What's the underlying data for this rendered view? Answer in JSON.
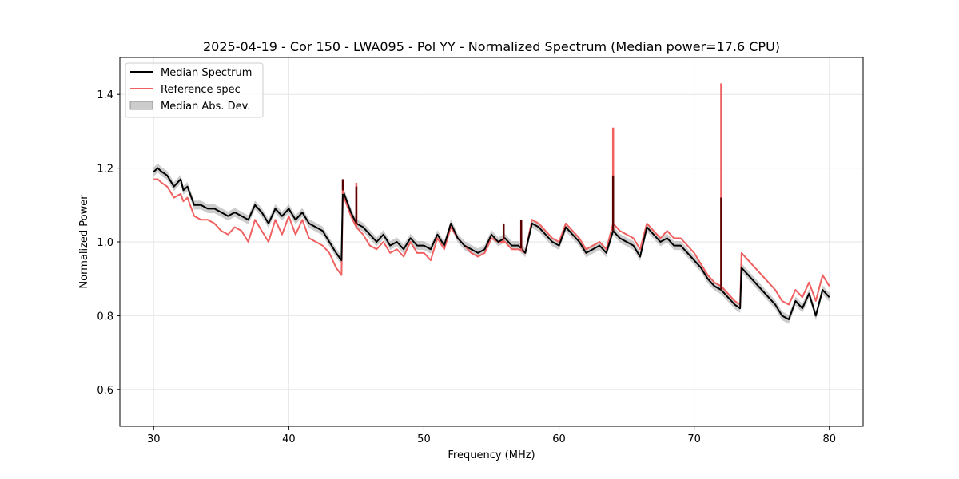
{
  "chart_data": {
    "type": "line",
    "title": "2025-04-19 - Cor 150 - LWA095 - Pol YY - Normalized Spectrum (Median power=17.6 CPU)",
    "xlabel": "Frequency (MHz)",
    "ylabel": "Normalized Power",
    "xlim": [
      27.5,
      82.5
    ],
    "ylim": [
      0.5,
      1.5
    ],
    "xticks": [
      30,
      40,
      50,
      60,
      70,
      80
    ],
    "yticks": [
      0.6,
      0.8,
      1.0,
      1.2,
      1.4
    ],
    "grid": true,
    "legend_position": "top-left",
    "legend": [
      "Median Spectrum",
      "Reference spec",
      "Median Abs. Dev."
    ],
    "colors": {
      "median": "#000000",
      "reference": "#f06060",
      "mad": "#999999"
    },
    "series": [
      {
        "name": "Median Spectrum",
        "x": [
          30.0,
          30.3,
          30.6,
          31.0,
          31.5,
          32.0,
          32.2,
          32.5,
          32.8,
          33.0,
          33.5,
          34.0,
          34.5,
          35.0,
          35.5,
          36.0,
          36.5,
          37.0,
          37.5,
          38.0,
          38.5,
          39.0,
          39.5,
          40.0,
          40.5,
          41.0,
          41.5,
          42.0,
          42.5,
          43.0,
          43.5,
          43.9,
          44.0,
          44.3,
          44.6,
          45.0,
          45.5,
          46.0,
          46.5,
          47.0,
          47.5,
          48.0,
          48.5,
          49.0,
          49.5,
          50.0,
          50.5,
          51.0,
          51.5,
          52.0,
          52.5,
          53.0,
          53.5,
          54.0,
          54.5,
          55.0,
          55.5,
          56.0,
          56.5,
          57.0,
          57.5,
          58.0,
          58.5,
          59.0,
          59.5,
          60.0,
          60.5,
          61.0,
          61.5,
          62.0,
          62.5,
          63.0,
          63.5,
          64.0,
          64.5,
          65.0,
          65.5,
          66.0,
          66.5,
          67.0,
          67.5,
          68.0,
          68.5,
          69.0,
          69.5,
          70.0,
          70.5,
          71.0,
          71.5,
          72.0,
          72.5,
          73.0,
          73.4,
          73.5,
          74.0,
          74.5,
          75.0,
          75.5,
          76.0,
          76.5,
          77.0,
          77.5,
          78.0,
          78.5,
          79.0,
          79.5,
          80.0
        ],
        "values": [
          1.19,
          1.2,
          1.19,
          1.18,
          1.15,
          1.17,
          1.14,
          1.15,
          1.12,
          1.1,
          1.1,
          1.09,
          1.09,
          1.08,
          1.07,
          1.08,
          1.07,
          1.06,
          1.1,
          1.08,
          1.05,
          1.09,
          1.07,
          1.09,
          1.06,
          1.08,
          1.05,
          1.04,
          1.03,
          1.0,
          0.97,
          0.95,
          1.14,
          1.11,
          1.08,
          1.05,
          1.04,
          1.02,
          1.0,
          1.02,
          0.99,
          1.0,
          0.98,
          1.01,
          0.99,
          0.99,
          0.98,
          1.02,
          0.99,
          1.05,
          1.01,
          0.99,
          0.98,
          0.97,
          0.98,
          1.02,
          1.0,
          1.01,
          0.99,
          0.99,
          0.97,
          1.05,
          1.04,
          1.02,
          1.0,
          0.99,
          1.04,
          1.02,
          1.0,
          0.97,
          0.98,
          0.99,
          0.97,
          1.03,
          1.01,
          1.0,
          0.99,
          0.96,
          1.04,
          1.02,
          1.0,
          1.01,
          0.99,
          0.99,
          0.97,
          0.95,
          0.93,
          0.9,
          0.88,
          0.87,
          0.85,
          0.83,
          0.82,
          0.93,
          0.91,
          0.89,
          0.87,
          0.85,
          0.83,
          0.8,
          0.79,
          0.84,
          0.82,
          0.86,
          0.8,
          0.87,
          0.85
        ]
      },
      {
        "name": "Reference spec",
        "x": [
          30.0,
          30.3,
          30.6,
          31.0,
          31.5,
          32.0,
          32.2,
          32.5,
          32.8,
          33.0,
          33.5,
          34.0,
          34.5,
          35.0,
          35.5,
          36.0,
          36.5,
          37.0,
          37.5,
          38.0,
          38.5,
          39.0,
          39.5,
          40.0,
          40.5,
          41.0,
          41.5,
          42.0,
          42.5,
          43.0,
          43.5,
          43.9,
          44.0,
          44.3,
          44.6,
          45.0,
          45.5,
          46.0,
          46.5,
          47.0,
          47.5,
          48.0,
          48.5,
          49.0,
          49.5,
          50.0,
          50.5,
          51.0,
          51.5,
          52.0,
          52.5,
          53.0,
          53.5,
          54.0,
          54.5,
          55.0,
          55.5,
          56.0,
          56.5,
          57.0,
          57.5,
          58.0,
          58.5,
          59.0,
          59.5,
          60.0,
          60.5,
          61.0,
          61.5,
          62.0,
          62.5,
          63.0,
          63.5,
          64.0,
          64.5,
          65.0,
          65.5,
          66.0,
          66.5,
          67.0,
          67.5,
          68.0,
          68.5,
          69.0,
          69.5,
          70.0,
          70.5,
          71.0,
          71.5,
          72.0,
          72.5,
          73.0,
          73.4,
          73.5,
          74.0,
          74.5,
          75.0,
          75.5,
          76.0,
          76.5,
          77.0,
          77.5,
          78.0,
          78.5,
          79.0,
          79.5,
          80.0
        ],
        "values": [
          1.17,
          1.17,
          1.16,
          1.15,
          1.12,
          1.13,
          1.11,
          1.12,
          1.09,
          1.07,
          1.06,
          1.06,
          1.05,
          1.03,
          1.02,
          1.04,
          1.03,
          1.0,
          1.06,
          1.03,
          1.0,
          1.06,
          1.02,
          1.07,
          1.02,
          1.06,
          1.01,
          1.0,
          0.99,
          0.97,
          0.93,
          0.91,
          1.13,
          1.1,
          1.07,
          1.04,
          1.02,
          0.99,
          0.98,
          1.0,
          0.97,
          0.98,
          0.96,
          1.0,
          0.97,
          0.97,
          0.95,
          1.01,
          0.98,
          1.04,
          1.01,
          0.99,
          0.97,
          0.96,
          0.97,
          1.01,
          1.0,
          1.0,
          0.98,
          0.98,
          0.97,
          1.06,
          1.05,
          1.03,
          1.01,
          1.0,
          1.05,
          1.03,
          1.01,
          0.98,
          0.99,
          1.0,
          0.98,
          1.05,
          1.03,
          1.02,
          1.01,
          0.98,
          1.05,
          1.03,
          1.01,
          1.03,
          1.01,
          1.01,
          0.99,
          0.97,
          0.94,
          0.91,
          0.89,
          0.88,
          0.86,
          0.84,
          0.83,
          0.97,
          0.95,
          0.93,
          0.91,
          0.89,
          0.87,
          0.84,
          0.83,
          0.87,
          0.85,
          0.89,
          0.84,
          0.91,
          0.88
        ]
      }
    ],
    "mad_band_width": 0.012,
    "spikes": [
      {
        "x": 44.0,
        "median": 1.17,
        "reference": 1.14
      },
      {
        "x": 45.0,
        "median": 1.15,
        "reference": 1.16
      },
      {
        "x": 55.9,
        "median": 1.05,
        "reference": 1.03
      },
      {
        "x": 57.2,
        "median": 1.06,
        "reference": 1.04
      },
      {
        "x": 64.0,
        "median": 1.18,
        "reference": 1.31
      },
      {
        "x": 72.0,
        "median": 1.12,
        "reference": 1.43
      }
    ]
  }
}
